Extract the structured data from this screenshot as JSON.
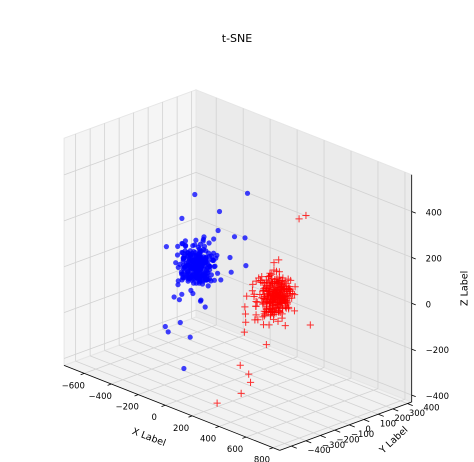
{
  "chart_data": {
    "type": "scatter",
    "projection": "3d",
    "title": "t-SNE",
    "xlabel": "X Label",
    "ylabel": "Y Label",
    "zlabel": "Z Label",
    "xlim": [
      -750,
      850
    ],
    "ylim": [
      -480,
      430
    ],
    "zlim": [
      -430,
      560
    ],
    "x_ticks": [
      "−600",
      "−400",
      "−200",
      "0",
      "200",
      "400",
      "600",
      "800"
    ],
    "y_ticks": [
      "−400",
      "−300",
      "−200",
      "−100",
      "0",
      "100",
      "200",
      "300",
      "400"
    ],
    "z_ticks": [
      "−400",
      "−200",
      "0",
      "200",
      "400"
    ],
    "x_tick_values": [
      -600,
      -400,
      -200,
      0,
      200,
      400,
      600,
      800
    ],
    "y_tick_values": [
      -400,
      -300,
      -200,
      -100,
      0,
      100,
      200,
      300,
      400
    ],
    "z_tick_values": [
      -400,
      -200,
      0,
      200,
      400
    ],
    "grid": true,
    "series": [
      {
        "marker": "o",
        "color": "#0000ff",
        "cluster_center": [
          -280,
          0,
          0
        ],
        "cluster_spread": [
          45,
          45,
          45
        ],
        "core_count": 260,
        "outliers": [
          [
            -349,
            49,
            285
          ],
          [
            -141,
            219,
            299
          ],
          [
            -224,
            103,
            227
          ],
          [
            -270,
            136,
            126
          ],
          [
            -193,
            178,
            107
          ],
          [
            -432,
            8,
            49
          ],
          [
            -130,
            88,
            52
          ],
          [
            -171,
            230,
            95
          ],
          [
            -88,
            159,
            10
          ],
          [
            -219,
            -29,
            -127
          ],
          [
            -188,
            -29,
            -150
          ],
          [
            -353,
            -37,
            -131
          ],
          [
            -365,
            -79,
            -136
          ],
          [
            -251,
            -142,
            -206
          ],
          [
            -380,
            -126,
            -257
          ],
          [
            -328,
            -154,
            -262
          ],
          [
            -182,
            -138,
            -255
          ],
          [
            -157,
            -205,
            -370
          ],
          [
            -121,
            88,
            -10
          ],
          [
            -309,
            -77,
            219
          ]
        ]
      },
      {
        "marker": "+",
        "color": "#ff0000",
        "cluster_center": [
          300,
          0,
          0
        ],
        "cluster_spread": [
          45,
          45,
          45
        ],
        "core_count": 260,
        "outliers": [
          [
            298,
            214,
            305
          ],
          [
            304,
            161,
            304
          ],
          [
            170,
            145,
            98
          ],
          [
            127,
            59,
            18
          ],
          [
            213,
            46,
            63
          ],
          [
            189,
            67,
            62
          ],
          [
            230,
            93,
            35
          ],
          [
            323,
            -176,
            101
          ],
          [
            280,
            -178,
            40
          ],
          [
            106,
            -23,
            -150
          ],
          [
            206,
            -125,
            -146
          ],
          [
            283,
            -45,
            -201
          ],
          [
            244,
            -189,
            -267
          ],
          [
            280,
            -164,
            -303
          ],
          [
            358,
            -224,
            -307
          ],
          [
            324,
            -257,
            -355
          ],
          [
            208,
            -315,
            -411
          ],
          [
            453,
            100,
            -110
          ],
          [
            379,
            -154,
            -67
          ],
          [
            144,
            5,
            -137
          ]
        ]
      }
    ]
  }
}
